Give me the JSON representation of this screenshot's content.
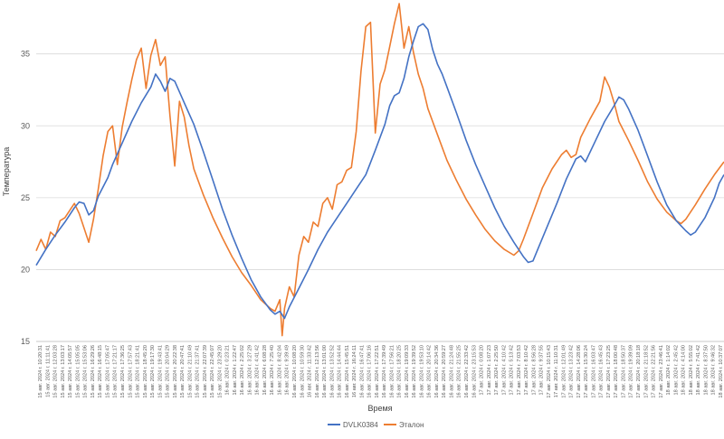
{
  "chart_data": {
    "type": "line",
    "title": "",
    "xlabel": "Время",
    "ylabel": "Температура",
    "ylim": [
      15,
      38.5
    ],
    "yticks": [
      15,
      20,
      25,
      30,
      35
    ],
    "grid": "horizontal",
    "legend_position": "bottom",
    "x_tick_labels": [
      "15 авг. 2024 г. 10:20:31",
      "15 авг. 2024 г. 11:11:41",
      "15 авг. 2024 г. 12:03:28",
      "15 авг. 2024 г. 13:03:17",
      "15 авг. 2024 г. 14:05:57",
      "15 авг. 2024 г. 15:05:05",
      "15 авг. 2024 г. 15:53:06",
      "15 авг. 2024 г. 16:29:26",
      "15 авг. 2024 г. 16:48:15",
      "15 авг. 2024 г. 17:05:47",
      "15 авг. 2024 г. 17:21:17",
      "15 авг. 2024 г. 17:36:25",
      "15 авг. 2024 г. 17:57:43",
      "15 авг. 2024 г. 18:21:41",
      "15 авг. 2024 г. 18:45:20",
      "15 авг. 2024 г. 19:17:30",
      "15 авг. 2024 г. 19:43:41",
      "15 авг. 2024 г. 20:04:29",
      "15 авг. 2024 г. 20:22:38",
      "15 авг. 2024 г. 20:47:41",
      "15 авг. 2024 г. 21:10:49",
      "15 авг. 2024 г. 21:37:41",
      "15 авг. 2024 г. 22:07:39",
      "15 авг. 2024 г. 22:45:07",
      "15 авг. 2024 г. 23:29:20",
      "16 авг. 2024 г. 0:23:21",
      "16 авг. 2024 г. 1:22:47",
      "16 авг. 2024 г. 2:25:02",
      "16 авг. 2024 г. 3:27:29",
      "16 авг. 2024 г. 4:41:42",
      "16 авг. 2024 г. 6:08:28",
      "16 авг. 2024 г. 7:25:40",
      "16 авг. 2024 г. 8:42:04",
      "16 авг. 2024 г. 9:39:49",
      "16 авг. 2024 г. 10:08:20",
      "16 авг. 2024 г. 10:59:30",
      "16 авг. 2024 г. 11:33:42",
      "16 авг. 2024 г. 12:13:56",
      "16 авг. 2024 г. 13:01:00",
      "16 авг. 2024 г. 13:52:52",
      "16 авг. 2024 г. 14:44:44",
      "16 авг. 2024 г. 15:45:51",
      "16 авг. 2024 г. 16:24:11",
      "16 авг. 2024 г. 16:47:41",
      "16 авг. 2024 г. 17:06:16",
      "16 авг. 2024 г. 17:22:51",
      "16 авг. 2024 г. 17:39:49",
      "16 авг. 2024 г. 17:56:21",
      "16 авг. 2024 г. 18:20:25",
      "16 авг. 2024 г. 19:09:33",
      "16 авг. 2024 г. 19:39:52",
      "16 авг. 2024 г. 19:53:10",
      "16 авг. 2024 г. 20:14:42",
      "16 авг. 2024 г. 20:34:36",
      "16 авг. 2024 г. 20:59:27",
      "16 авг. 2024 г. 21:24:48",
      "16 авг. 2024 г. 21:55:25",
      "16 авг. 2024 г. 22:33:42",
      "16 авг. 2024 г. 23:15:53",
      "17 авг. 2024 г. 0:08:20",
      "17 авг. 2024 г. 1:07:23",
      "17 авг. 2024 г. 2:25:50",
      "17 авг. 2024 г. 4:10:42",
      "17 авг. 2024 г. 5:13:42",
      "17 авг. 2024 г. 7:03:53",
      "17 авг. 2024 г. 8:10:42",
      "17 авг. 2024 г. 8:56:28",
      "17 авг. 2024 г. 9:37:55",
      "17 авг. 2024 г. 10:15:43",
      "17 авг. 2024 г. 11:10:31",
      "17 авг. 2024 г. 12:01:49",
      "17 авг. 2024 г. 13:23:42",
      "17 авг. 2024 г. 14:28:06",
      "17 авг. 2024 г. 15:30:24",
      "17 авг. 2024 г. 16:03:47",
      "17 авг. 2024 г. 16:45:43",
      "17 авг. 2024 г. 17:23:25",
      "17 авг. 2024 г. 18:00:48",
      "17 авг. 2024 г. 18:50:37",
      "17 авг. 2024 г. 19:39:09",
      "17 авг. 2024 г. 20:18:18",
      "17 авг. 2024 г. 21:18:52",
      "17 авг. 2024 г. 22:21:56",
      "17 авг. 2024 г. 23:46:41",
      "18 авг. 2024 г. 1:14:02",
      "18 авг. 2024 г. 2:45:42",
      "18 авг. 2024 г. 4:14:00",
      "18 авг. 2024 г. 5:55:02",
      "18 авг. 2024 г. 7:41:42",
      "18 авг. 2024 г. 8:37:50",
      "18 авг. 2024 г. 9:46:32",
      "18 авг. 2024 г. 10:37:07"
    ],
    "series": [
      {
        "name": "DVLK0384",
        "color": "#4472c4",
        "points": [
          [
            0,
            20.3
          ],
          [
            2,
            21.4
          ],
          [
            4,
            22.4
          ],
          [
            6,
            23.3
          ],
          [
            8,
            24.3
          ],
          [
            9,
            24.7
          ],
          [
            10,
            24.6
          ],
          [
            11,
            23.8
          ],
          [
            12,
            24.1
          ],
          [
            13,
            25.1
          ],
          [
            15,
            26.4
          ],
          [
            16,
            27.3
          ],
          [
            18,
            28.8
          ],
          [
            20,
            30.3
          ],
          [
            22,
            31.6
          ],
          [
            24,
            32.7
          ],
          [
            25,
            33.6
          ],
          [
            26,
            33.1
          ],
          [
            27,
            32.4
          ],
          [
            28,
            33.3
          ],
          [
            29,
            33.1
          ],
          [
            31,
            31.6
          ],
          [
            33,
            30.1
          ],
          [
            35,
            28.2
          ],
          [
            37,
            26.2
          ],
          [
            39,
            24.2
          ],
          [
            41,
            22.4
          ],
          [
            43,
            20.8
          ],
          [
            45,
            19.3
          ],
          [
            47,
            18.1
          ],
          [
            49,
            17.2
          ],
          [
            50,
            16.9
          ],
          [
            51,
            17.1
          ],
          [
            52,
            16.6
          ],
          [
            53,
            17.4
          ],
          [
            55,
            18.7
          ],
          [
            57,
            20.0
          ],
          [
            59,
            21.4
          ],
          [
            61,
            22.6
          ],
          [
            63,
            23.6
          ],
          [
            65,
            24.6
          ],
          [
            67,
            25.6
          ],
          [
            69,
            26.6
          ],
          [
            71,
            28.3
          ],
          [
            73,
            30.1
          ],
          [
            74,
            31.4
          ],
          [
            75,
            32.1
          ],
          [
            76,
            32.3
          ],
          [
            77,
            33.3
          ],
          [
            78,
            34.8
          ],
          [
            79,
            35.9
          ],
          [
            80,
            36.9
          ],
          [
            81,
            37.1
          ],
          [
            82,
            36.7
          ],
          [
            83,
            35.3
          ],
          [
            84,
            34.3
          ],
          [
            85,
            33.6
          ],
          [
            86,
            32.7
          ],
          [
            88,
            30.9
          ],
          [
            90,
            29.0
          ],
          [
            92,
            27.3
          ],
          [
            94,
            25.8
          ],
          [
            96,
            24.3
          ],
          [
            98,
            23.0
          ],
          [
            100,
            21.9
          ],
          [
            102,
            20.9
          ],
          [
            103,
            20.5
          ],
          [
            104,
            20.6
          ],
          [
            105,
            21.4
          ],
          [
            107,
            23.0
          ],
          [
            109,
            24.6
          ],
          [
            111,
            26.3
          ],
          [
            113,
            27.7
          ],
          [
            114,
            27.9
          ],
          [
            115,
            27.5
          ],
          [
            117,
            28.9
          ],
          [
            119,
            30.3
          ],
          [
            121,
            31.4
          ],
          [
            122,
            32.0
          ],
          [
            123,
            31.8
          ],
          [
            124,
            31.2
          ],
          [
            126,
            29.7
          ],
          [
            128,
            27.9
          ],
          [
            130,
            26.1
          ],
          [
            132,
            24.5
          ],
          [
            134,
            23.4
          ],
          [
            136,
            22.7
          ],
          [
            137,
            22.4
          ],
          [
            138,
            22.6
          ],
          [
            140,
            23.6
          ],
          [
            142,
            25.0
          ],
          [
            143,
            26.0
          ],
          [
            144,
            26.6
          ]
        ]
      },
      {
        "name": "Эталон",
        "color": "#ed7d31",
        "points": [
          [
            0,
            21.3
          ],
          [
            1,
            22.1
          ],
          [
            2,
            21.4
          ],
          [
            3,
            22.6
          ],
          [
            4,
            22.3
          ],
          [
            5,
            23.4
          ],
          [
            6,
            23.6
          ],
          [
            7,
            24.1
          ],
          [
            8,
            24.6
          ],
          [
            9,
            23.9
          ],
          [
            10,
            22.9
          ],
          [
            11,
            21.9
          ],
          [
            12,
            23.5
          ],
          [
            13,
            25.6
          ],
          [
            14,
            27.9
          ],
          [
            15,
            29.6
          ],
          [
            16,
            30.0
          ],
          [
            17,
            27.3
          ],
          [
            18,
            29.9
          ],
          [
            19,
            31.6
          ],
          [
            20,
            33.2
          ],
          [
            21,
            34.6
          ],
          [
            22,
            35.4
          ],
          [
            23,
            32.6
          ],
          [
            24,
            34.9
          ],
          [
            25,
            36.0
          ],
          [
            26,
            34.2
          ],
          [
            27,
            34.8
          ],
          [
            28,
            30.7
          ],
          [
            29,
            27.2
          ],
          [
            30,
            31.7
          ],
          [
            31,
            30.6
          ],
          [
            32,
            28.6
          ],
          [
            33,
            27.0
          ],
          [
            35,
            25.2
          ],
          [
            37,
            23.6
          ],
          [
            39,
            22.2
          ],
          [
            41,
            20.9
          ],
          [
            43,
            19.8
          ],
          [
            45,
            18.9
          ],
          [
            47,
            17.9
          ],
          [
            49,
            17.3
          ],
          [
            50,
            17.1
          ],
          [
            51,
            17.9
          ],
          [
            51.5,
            15.4
          ],
          [
            52,
            17.3
          ],
          [
            53,
            18.8
          ],
          [
            54,
            18.1
          ],
          [
            55,
            21.0
          ],
          [
            56,
            22.3
          ],
          [
            57,
            21.9
          ],
          [
            58,
            23.3
          ],
          [
            59,
            23.0
          ],
          [
            60,
            24.6
          ],
          [
            61,
            25.0
          ],
          [
            62,
            24.2
          ],
          [
            63,
            25.9
          ],
          [
            64,
            26.1
          ],
          [
            65,
            26.9
          ],
          [
            66,
            27.1
          ],
          [
            67,
            29.6
          ],
          [
            68,
            33.8
          ],
          [
            69,
            36.9
          ],
          [
            70,
            37.2
          ],
          [
            71,
            29.5
          ],
          [
            72,
            32.9
          ],
          [
            73,
            33.9
          ],
          [
            74,
            35.5
          ],
          [
            75,
            37.1
          ],
          [
            76,
            38.5
          ],
          [
            77,
            35.4
          ],
          [
            78,
            36.9
          ],
          [
            79,
            35.1
          ],
          [
            80,
            33.6
          ],
          [
            81,
            32.6
          ],
          [
            82,
            31.2
          ],
          [
            84,
            29.4
          ],
          [
            86,
            27.6
          ],
          [
            88,
            26.2
          ],
          [
            90,
            24.9
          ],
          [
            92,
            23.8
          ],
          [
            94,
            22.8
          ],
          [
            96,
            22.0
          ],
          [
            98,
            21.4
          ],
          [
            100,
            21.0
          ],
          [
            101,
            21.3
          ],
          [
            102,
            22.1
          ],
          [
            104,
            23.9
          ],
          [
            106,
            25.7
          ],
          [
            108,
            27.0
          ],
          [
            110,
            28.0
          ],
          [
            111,
            28.3
          ],
          [
            112,
            27.8
          ],
          [
            113,
            28.0
          ],
          [
            114,
            29.2
          ],
          [
            116,
            30.5
          ],
          [
            118,
            31.7
          ],
          [
            119,
            33.4
          ],
          [
            120,
            32.7
          ],
          [
            121,
            31.6
          ],
          [
            122,
            30.3
          ],
          [
            124,
            29.0
          ],
          [
            126,
            27.6
          ],
          [
            128,
            26.1
          ],
          [
            130,
            24.9
          ],
          [
            132,
            24.0
          ],
          [
            134,
            23.4
          ],
          [
            135,
            23.2
          ],
          [
            136,
            23.5
          ],
          [
            138,
            24.5
          ],
          [
            140,
            25.6
          ],
          [
            142,
            26.6
          ],
          [
            144,
            27.5
          ]
        ]
      }
    ]
  }
}
